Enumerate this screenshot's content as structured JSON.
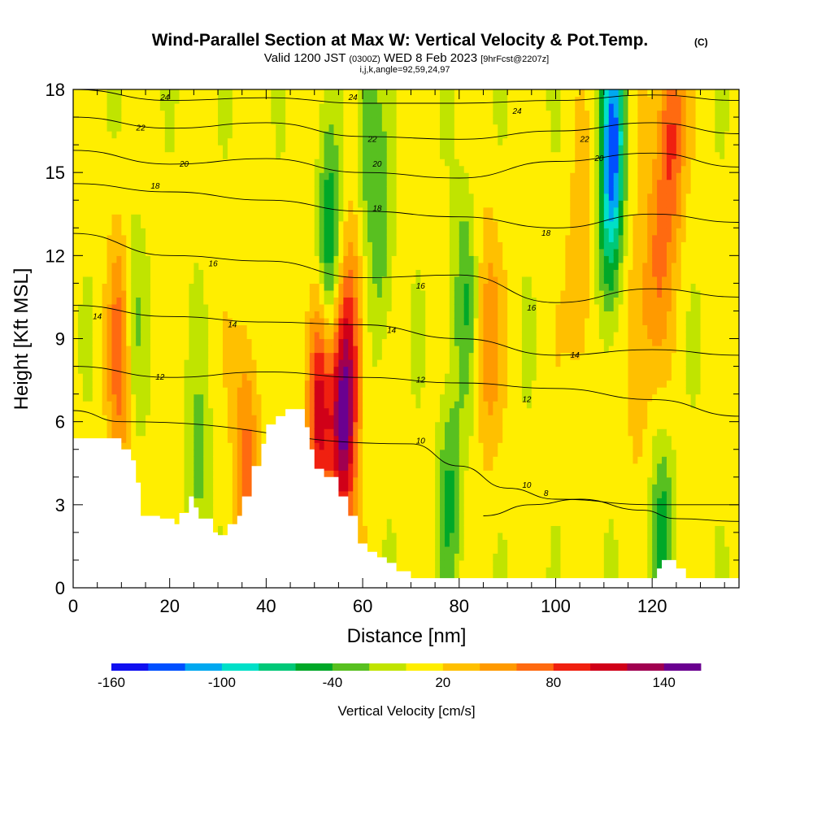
{
  "title": {
    "main": "Wind-Parallel Section at Max W: Vertical Velocity & Pot.Temp.",
    "copyright": "(C)",
    "valid_prefix": "Valid 1200 JST",
    "valid_utc": "(0300Z)",
    "valid_date": "WED 8 Feb 2023",
    "forecast": "[9hrFcst@2207z]",
    "indices": "i,j,k,angle=92,59,24,97"
  },
  "chart_data": {
    "type": "heatmap",
    "xlabel": "Distance [nm]",
    "ylabel": "Height [Kft MSL]",
    "xlim": [
      0,
      138
    ],
    "ylim": [
      0,
      18
    ],
    "x_ticks": [
      0,
      20,
      40,
      60,
      80,
      100,
      120
    ],
    "y_ticks": [
      0,
      3,
      6,
      9,
      12,
      15,
      18
    ],
    "x_minor_step": 5,
    "y_minor_step": 1,
    "colorbar": {
      "title": "Vertical Velocity [cm/s]",
      "tick_labels": [
        "-160",
        "-100",
        "-40",
        "20",
        "80",
        "140"
      ],
      "tick_values": [
        -160,
        -100,
        -40,
        20,
        80,
        140
      ],
      "range": [
        -160,
        160
      ],
      "colors": [
        "#1010f0",
        "#0050ff",
        "#00a8f0",
        "#00e0c8",
        "#00c878",
        "#00a828",
        "#58c020",
        "#c0e400",
        "#ffee00",
        "#ffc000",
        "#ff9a00",
        "#ff6a10",
        "#f02010",
        "#d00018",
        "#a00050",
        "#6a0090"
      ]
    },
    "terrain": [
      [
        0,
        5.4
      ],
      [
        8,
        5.4
      ],
      [
        10,
        5.0
      ],
      [
        12,
        4.6
      ],
      [
        13,
        3.8
      ],
      [
        14,
        2.6
      ],
      [
        18,
        2.5
      ],
      [
        21,
        2.3
      ],
      [
        22,
        2.7
      ],
      [
        24,
        3.3
      ],
      [
        25,
        2.9
      ],
      [
        26,
        2.5
      ],
      [
        29,
        2.0
      ],
      [
        30,
        1.9
      ],
      [
        32,
        2.3
      ],
      [
        34,
        2.6
      ],
      [
        35,
        3.3
      ],
      [
        37,
        4.4
      ],
      [
        39,
        5.2
      ],
      [
        40,
        5.9
      ],
      [
        42,
        6.2
      ],
      [
        44,
        6.45
      ],
      [
        46,
        6.45
      ],
      [
        48,
        5.8
      ],
      [
        49,
        5.0
      ],
      [
        50,
        4.3
      ],
      [
        52,
        4.0
      ],
      [
        55,
        3.3
      ],
      [
        57,
        2.6
      ],
      [
        59,
        1.6
      ],
      [
        61,
        1.3
      ],
      [
        63,
        1.1
      ],
      [
        65,
        0.9
      ],
      [
        67,
        0.6
      ],
      [
        70,
        0.35
      ],
      [
        75,
        0.35
      ],
      [
        120,
        0.35
      ],
      [
        121,
        0.7
      ],
      [
        122,
        1.0
      ],
      [
        124,
        1.0
      ],
      [
        125,
        0.7
      ],
      [
        127,
        0.35
      ],
      [
        138,
        0.35
      ]
    ],
    "updrafts": [
      {
        "x": 10,
        "y": 8.5,
        "amp": 75
      },
      {
        "x": 36,
        "y": 5.0,
        "amp": 60
      },
      {
        "x": 51,
        "y": 6.8,
        "amp": 110
      },
      {
        "x": 56,
        "y": 6.0,
        "amp": 130
      },
      {
        "x": 58,
        "y": 9.5,
        "amp": 50
      },
      {
        "x": 86,
        "y": 9.0,
        "amp": 45
      },
      {
        "x": 105,
        "y": 11.0,
        "amp": 35
      },
      {
        "x": 117,
        "y": 9.0,
        "amp": 40
      },
      {
        "x": 124,
        "y": 16.5,
        "amp": 80
      },
      {
        "x": 121,
        "y": 12.0,
        "amp": 45
      }
    ],
    "downdrafts": [
      {
        "x": 12,
        "y": 9.5,
        "amp": 45
      },
      {
        "x": 26,
        "y": 4.0,
        "amp": 35
      },
      {
        "x": 53,
        "y": 12.0,
        "amp": 80
      },
      {
        "x": 61,
        "y": 16.5,
        "amp": 50
      },
      {
        "x": 64,
        "y": 12.5,
        "amp": 40
      },
      {
        "x": 78,
        "y": 3.5,
        "amp": 50
      },
      {
        "x": 81,
        "y": 10.5,
        "amp": 45
      },
      {
        "x": 112,
        "y": 16.5,
        "amp": 110
      },
      {
        "x": 111,
        "y": 13.0,
        "amp": 60
      },
      {
        "x": 122,
        "y": 1.7,
        "amp": 55
      }
    ],
    "contours": [
      {
        "label": "24",
        "points": [
          [
            0,
            18.0
          ],
          [
            20,
            17.6
          ],
          [
            40,
            17.7
          ],
          [
            60,
            17.5
          ],
          [
            80,
            17.5
          ],
          [
            100,
            17.6
          ],
          [
            120,
            17.8
          ],
          [
            138,
            17.6
          ]
        ],
        "label_at": [
          [
            19,
            17.7
          ],
          [
            58,
            17.7
          ],
          [
            92,
            17.2
          ]
        ]
      },
      {
        "label": "22",
        "points": [
          [
            0,
            17.0
          ],
          [
            20,
            16.6
          ],
          [
            40,
            16.8
          ],
          [
            60,
            16.3
          ],
          [
            80,
            16.2
          ],
          [
            100,
            16.5
          ],
          [
            120,
            16.8
          ],
          [
            138,
            16.4
          ]
        ],
        "label_at": [
          [
            14,
            16.6
          ],
          [
            62,
            16.2
          ],
          [
            106,
            16.2
          ]
        ]
      },
      {
        "label": "20",
        "points": [
          [
            0,
            15.8
          ],
          [
            20,
            15.3
          ],
          [
            40,
            15.5
          ],
          [
            60,
            15.0
          ],
          [
            80,
            14.8
          ],
          [
            100,
            15.4
          ],
          [
            120,
            15.7
          ],
          [
            138,
            15.2
          ]
        ],
        "label_at": [
          [
            23,
            15.3
          ],
          [
            63,
            15.3
          ],
          [
            109,
            15.5
          ]
        ]
      },
      {
        "label": "18",
        "points": [
          [
            0,
            14.6
          ],
          [
            20,
            14.3
          ],
          [
            40,
            14.0
          ],
          [
            60,
            13.6
          ],
          [
            80,
            13.4
          ],
          [
            100,
            13.0
          ],
          [
            120,
            13.5
          ],
          [
            138,
            13.2
          ]
        ],
        "label_at": [
          [
            17,
            14.5
          ],
          [
            63,
            13.7
          ],
          [
            98,
            12.8
          ]
        ]
      },
      {
        "label": "16",
        "points": [
          [
            0,
            12.8
          ],
          [
            20,
            12.0
          ],
          [
            40,
            11.8
          ],
          [
            60,
            11.2
          ],
          [
            80,
            11.3
          ],
          [
            100,
            10.3
          ],
          [
            120,
            10.8
          ],
          [
            138,
            10.5
          ]
        ],
        "label_at": [
          [
            29,
            11.7
          ],
          [
            72,
            10.9
          ],
          [
            95,
            10.1
          ]
        ]
      },
      {
        "label": "14",
        "points": [
          [
            0,
            10.2
          ],
          [
            20,
            9.8
          ],
          [
            40,
            9.6
          ],
          [
            60,
            9.5
          ],
          [
            80,
            9.0
          ],
          [
            100,
            8.4
          ],
          [
            120,
            8.6
          ],
          [
            138,
            8.4
          ]
        ],
        "label_at": [
          [
            5,
            9.8
          ],
          [
            33,
            9.5
          ],
          [
            66,
            9.3
          ],
          [
            104,
            8.4
          ]
        ]
      },
      {
        "label": "12",
        "points": [
          [
            0,
            8.0
          ],
          [
            20,
            7.6
          ],
          [
            40,
            7.8
          ],
          [
            60,
            7.6
          ],
          [
            80,
            7.4
          ],
          [
            100,
            7.2
          ],
          [
            120,
            6.8
          ],
          [
            138,
            6.2
          ]
        ],
        "label_at": [
          [
            18,
            7.6
          ],
          [
            72,
            7.5
          ],
          [
            94,
            6.8
          ]
        ]
      },
      {
        "label": "10",
        "points": [
          [
            0,
            6.4
          ],
          [
            10,
            6.0
          ],
          [
            70,
            5.2
          ],
          [
            80,
            4.4
          ],
          [
            90,
            3.6
          ],
          [
            100,
            3.2
          ],
          [
            120,
            3.0
          ],
          [
            138,
            3.0
          ]
        ],
        "label_at": [
          [
            72,
            5.3
          ],
          [
            94,
            3.7
          ]
        ]
      },
      {
        "label": "8",
        "points": [
          [
            85,
            2.6
          ],
          [
            95,
            3.0
          ],
          [
            105,
            3.2
          ],
          [
            118,
            2.8
          ],
          [
            125,
            2.5
          ],
          [
            138,
            2.4
          ]
        ],
        "label_at": [
          [
            98,
            3.4
          ]
        ]
      }
    ]
  }
}
